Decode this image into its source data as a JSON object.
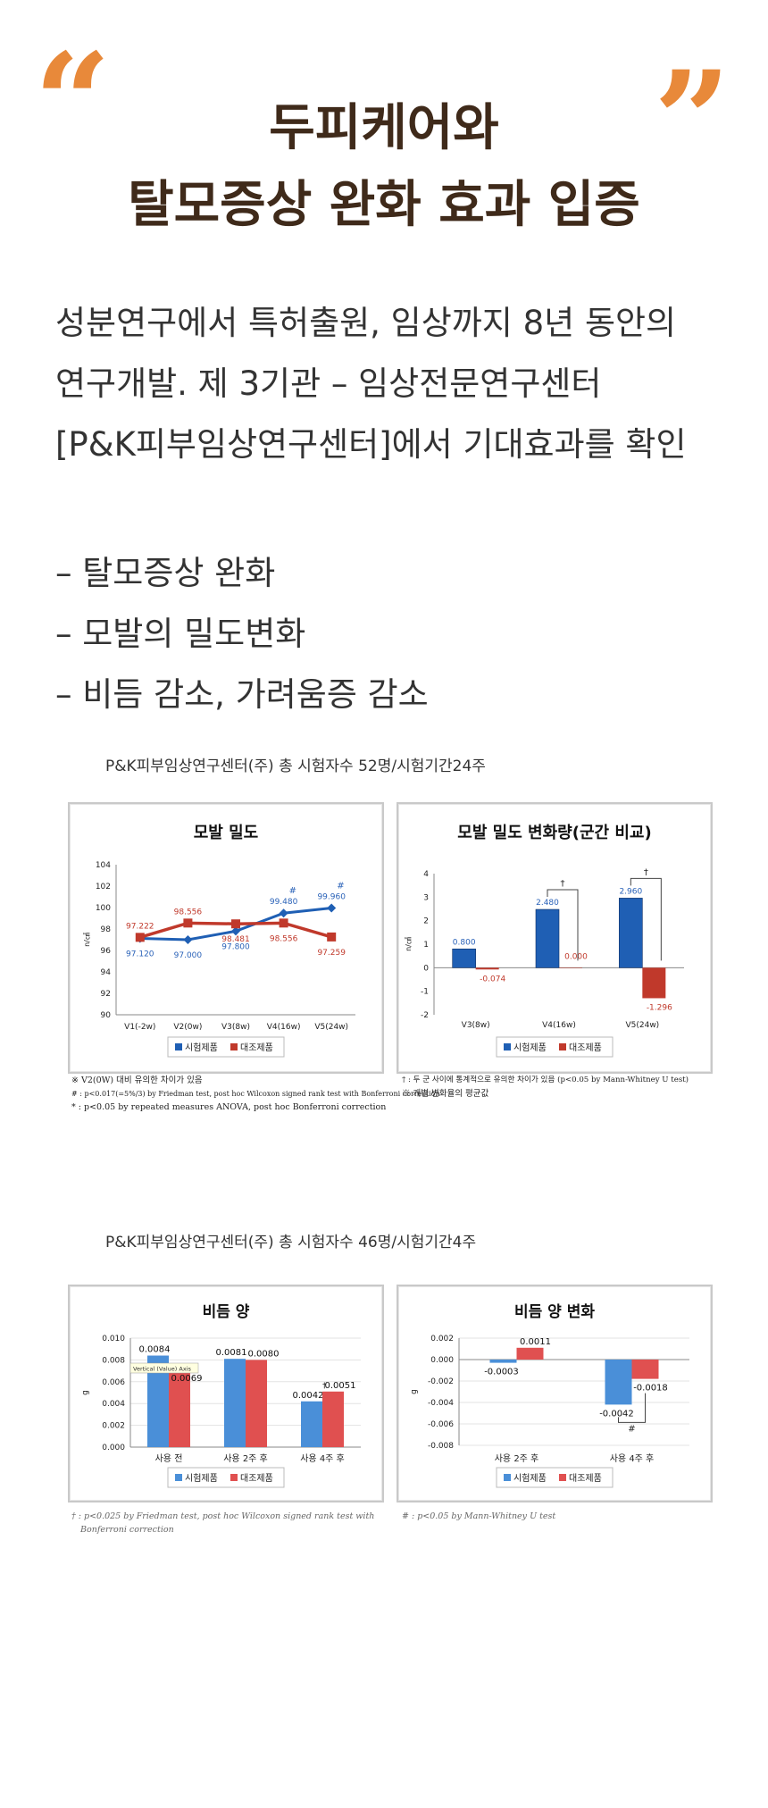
{
  "header": {
    "quote_open": "“",
    "quote_close": "”",
    "title_line1": "두피케어와",
    "title_line2": "탈모증상 완화 효과 입증"
  },
  "intro": {
    "line1": "성분연구에서 특허출원, 임상까지 8년 동안의",
    "line2": "연구개발. 제 3기관 – 임상전문연구센터",
    "line3": "[P&K피부임상연구센터]에서 기대효과를 확인"
  },
  "benefits": [
    "– 탈모증상 완화",
    "– 모발의 밀도변화",
    "– 비듬 감소, 가려움증 감소"
  ],
  "study1": {
    "caption": "P&K피부임상연구센터(주) 총 시험자수 52명/시험기간24주",
    "notes_left": [
      "※ V2(0W) 대비 유의한 차이가 있음",
      "# : p<0.017(=5%/3) by Friedman test, post hoc Wilcoxon signed rank test with Bonferroni correction",
      "* : p<0.05  by repeated measures ANOVA, post hoc Bonferroni correction"
    ],
    "notes_right": [
      "† : 두 군 사이에 통계적으로 유의한 차이가 있음 (p<0.05 by Mann-Whitney U test)",
      "※ 개별 변화율의 평균값"
    ]
  },
  "study2": {
    "caption": "P&K피부임상연구센터(주) 총 시험자수 46명/시험기간4주",
    "notes_left": [
      "† : p<0.025 by Friedman test, post hoc Wilcoxon signed rank test with",
      "Bonferroni correction"
    ],
    "notes_right": [
      "# : p<0.05 by Mann-Whitney U test"
    ]
  },
  "colors": {
    "accent": "#e8893a",
    "title": "#3f2a1a",
    "test_dark": "#1f5fb4",
    "control_dark": "#c0392b",
    "test_light": "#4a8fd8",
    "control_light": "#e05050"
  },
  "chart_data": [
    {
      "type": "line",
      "title": "모발 밀도",
      "ylabel": "n/㎠",
      "categories": [
        "V1(-2w)",
        "V2(0w)",
        "V3(8w)",
        "V4(16w)",
        "V5(24w)"
      ],
      "ylim": [
        90,
        104
      ],
      "yticks": [
        90,
        92,
        94,
        96,
        98,
        100,
        102,
        104
      ],
      "series": [
        {
          "name": "시험제품",
          "values": [
            97.12,
            97.0,
            97.8,
            99.48,
            99.96
          ],
          "labels": [
            "97.120",
            "97.000",
            "97.800",
            "99.480",
            "99.960"
          ],
          "marks": [
            "",
            "",
            "",
            "#",
            "#"
          ]
        },
        {
          "name": "대조제품",
          "values": [
            97.222,
            98.556,
            98.481,
            98.556,
            97.259
          ],
          "labels": [
            "97.222",
            "98.556",
            "98.481",
            "98.556",
            "97.259"
          ]
        }
      ],
      "legend": "bottom",
      "grid": false
    },
    {
      "type": "bar",
      "title": "모발 밀도 변화량(군간 비교)",
      "ylabel": "n/㎠",
      "categories": [
        "V3(8w)",
        "V4(16w)",
        "V5(24w)"
      ],
      "ylim": [
        -2,
        4
      ],
      "yticks": [
        -2,
        -1,
        0,
        1,
        2,
        3,
        4
      ],
      "series": [
        {
          "name": "시험제품",
          "values": [
            0.8,
            2.48,
            2.96
          ],
          "labels": [
            "0.800",
            "2.480",
            "2.960"
          ]
        },
        {
          "name": "대조제품",
          "values": [
            -0.074,
            0.0,
            -1.296
          ],
          "labels": [
            "-0.074",
            "0.000",
            "-1.296"
          ]
        }
      ],
      "significance": [
        "",
        "†",
        "†"
      ],
      "legend": "bottom",
      "grid": false
    },
    {
      "type": "bar",
      "title": "비듬 양",
      "ylabel": "g",
      "categories": [
        "사용 전",
        "사용 2주 후",
        "사용 4주 후"
      ],
      "ylim": [
        0,
        0.01
      ],
      "yticks": [
        "0.000",
        "0.002",
        "0.004",
        "0.006",
        "0.008",
        "0.010"
      ],
      "series": [
        {
          "name": "시험제품",
          "values": [
            0.0084,
            0.0081,
            0.0042
          ],
          "labels": [
            "0.0084",
            "0.0081",
            "0.0042"
          ]
        },
        {
          "name": "대조제품",
          "values": [
            0.0069,
            0.008,
            0.0051
          ],
          "labels": [
            "0.0069",
            "0.0080",
            "0.0051"
          ],
          "marks": [
            "",
            "",
            "†"
          ]
        }
      ],
      "annotation": "Vertical (Value) Axis",
      "legend": "bottom",
      "grid": true
    },
    {
      "type": "bar",
      "title": "비듬 양 변화",
      "ylabel": "g",
      "categories": [
        "사용 2주 후",
        "사용 4주 후"
      ],
      "ylim": [
        -0.008,
        0.002
      ],
      "yticks": [
        "0.002",
        "0.000",
        "-0.002",
        "-0.004",
        "-0.006",
        "-0.008"
      ],
      "series": [
        {
          "name": "시험제품",
          "values": [
            -0.0003,
            -0.0042
          ],
          "labels": [
            "-0.0003",
            "-0.0042"
          ]
        },
        {
          "name": "대조제품",
          "values": [
            0.0011,
            -0.0018
          ],
          "labels": [
            "0.0011",
            "-0.0018"
          ]
        }
      ],
      "significance": [
        "",
        "#"
      ],
      "legend": "bottom",
      "grid": true
    }
  ]
}
